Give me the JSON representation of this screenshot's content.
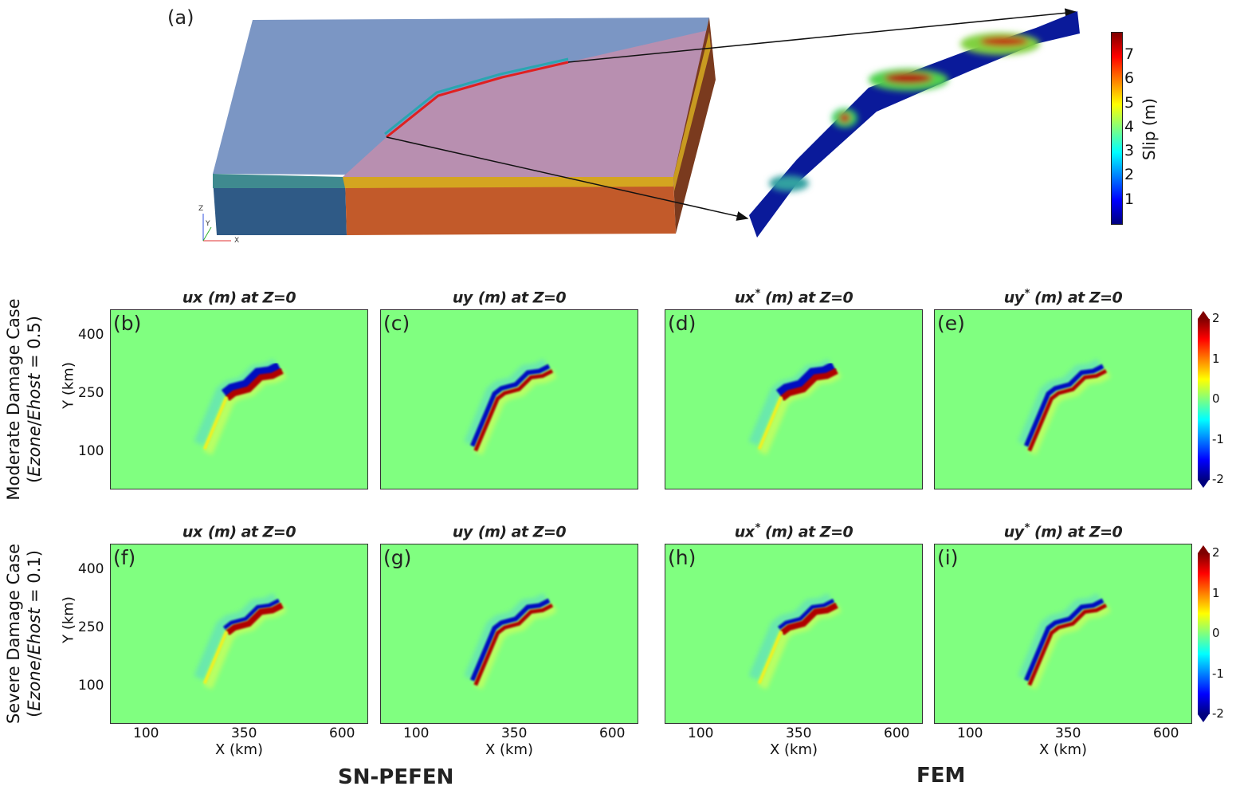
{
  "figure_a": {
    "label": "(a)",
    "triad": {
      "x": "X",
      "y": "Y",
      "z": "Z"
    },
    "slip_colorbar": {
      "label": "Slip (m)",
      "ticks": [
        "1",
        "2",
        "3",
        "4",
        "5",
        "6",
        "7"
      ],
      "range": [
        0,
        8
      ]
    }
  },
  "titles": {
    "ux": {
      "var": "ux",
      "star": "",
      "rest": " (m) at Z=0"
    },
    "uy": {
      "var": "uy",
      "star": "",
      "rest": " (m) at Z=0"
    },
    "uxs": {
      "var": "ux",
      "star": "*",
      "rest": " (m) at Z=0"
    },
    "uys": {
      "var": "uy",
      "star": "*",
      "rest": " (m) at Z=0"
    }
  },
  "panels": [
    {
      "label": "(b)",
      "field": "ux",
      "case": "moderate",
      "method": "SN-PEFEN"
    },
    {
      "label": "(c)",
      "field": "uy",
      "case": "moderate",
      "method": "SN-PEFEN"
    },
    {
      "label": "(d)",
      "field": "ux",
      "case": "moderate",
      "method": "FEM"
    },
    {
      "label": "(e)",
      "field": "uy",
      "case": "moderate",
      "method": "FEM"
    },
    {
      "label": "(f)",
      "field": "ux",
      "case": "severe",
      "method": "SN-PEFEN"
    },
    {
      "label": "(g)",
      "field": "uy",
      "case": "severe",
      "method": "SN-PEFEN"
    },
    {
      "label": "(h)",
      "field": "ux",
      "case": "severe",
      "method": "FEM"
    },
    {
      "label": "(i)",
      "field": "uy",
      "case": "severe",
      "method": "FEM"
    }
  ],
  "rows": [
    {
      "line1": "Moderate Damage Case",
      "pre": "(",
      "e1": "Ezone",
      "sep": "/",
      "e2": "Ehost",
      "post": " = 0.5)"
    },
    {
      "line1": "Severe Damage Case",
      "pre": "(",
      "e1": "Ezone",
      "sep": "/",
      "e2": "Ehost",
      "post": " = 0.1)"
    }
  ],
  "axes": {
    "xlabel": "X (km)",
    "ylabel": "Y (km)",
    "xticks": [
      "100",
      "350",
      "600"
    ],
    "yticks": [
      "400",
      "250",
      "100"
    ]
  },
  "field_colorbar": {
    "ticks": [
      "2",
      "1",
      "0",
      "-1",
      "-2"
    ],
    "range": [
      -2,
      2
    ]
  },
  "methods": {
    "left": "SN-PEFEN",
    "right": "FEM"
  },
  "colors": {
    "background_field": "#80ff80",
    "mesh_host": "#7b96c4",
    "mesh_zone": "#b88fb0"
  }
}
